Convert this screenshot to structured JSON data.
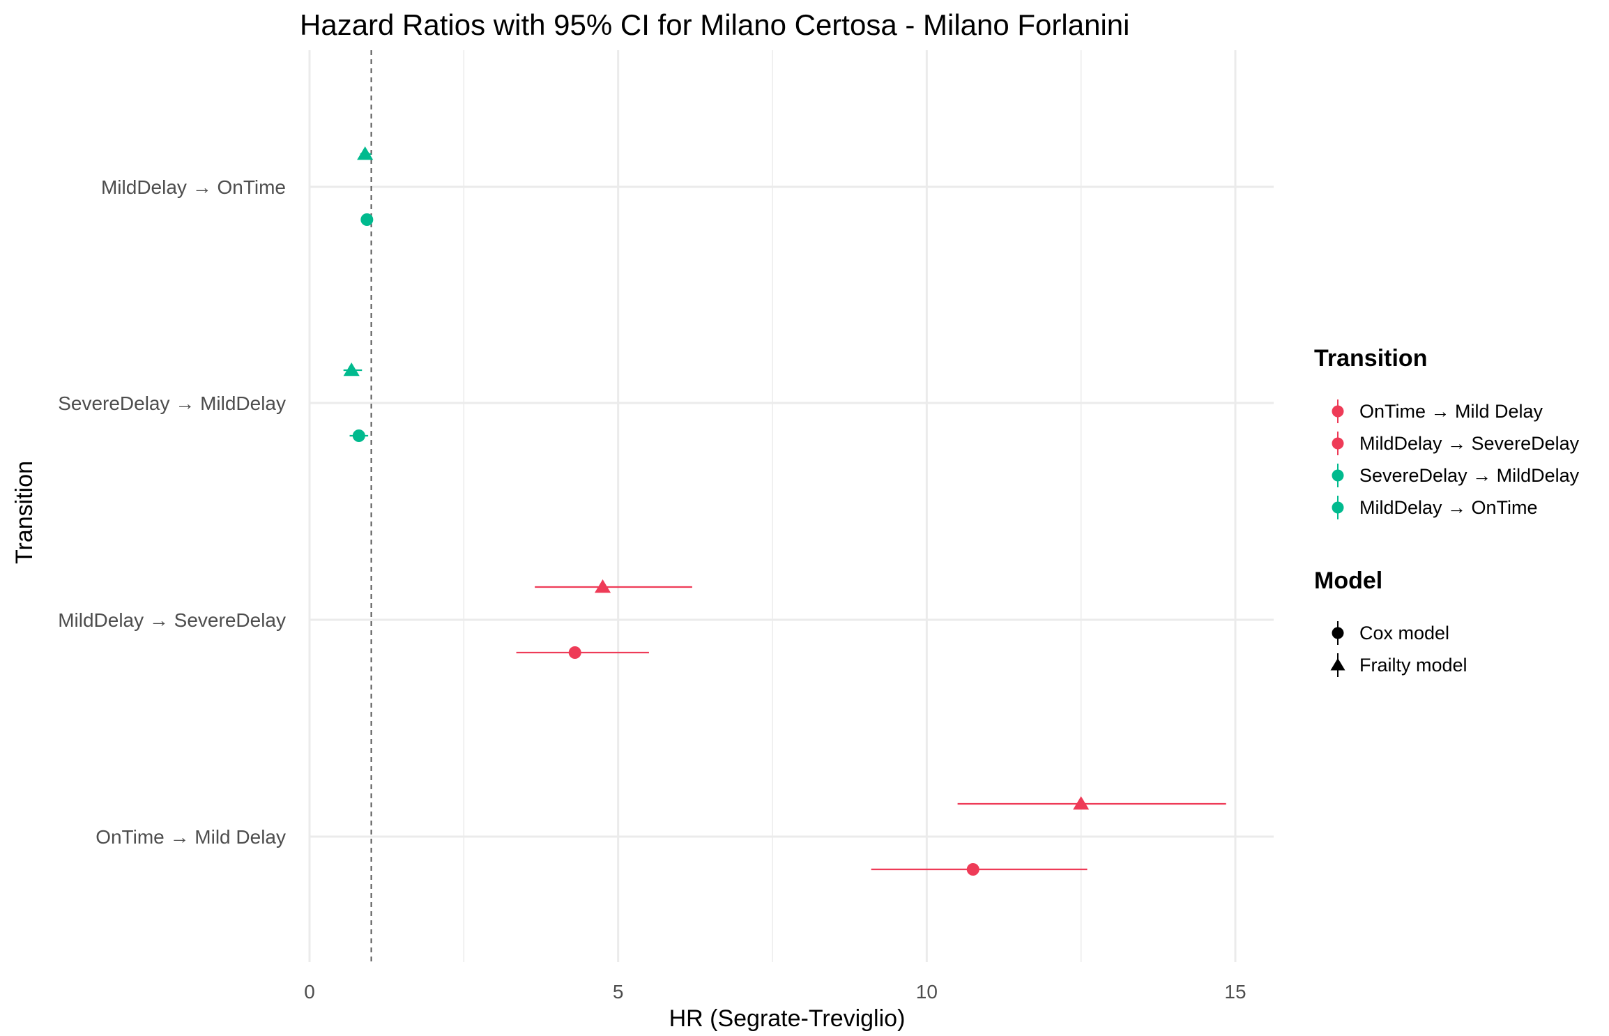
{
  "chart_data": {
    "type": "forest",
    "title": "Hazard Ratios with 95% CI for Milano Certosa - Milano Forlanini",
    "xlabel": "HR (Segrate-Treviglio)",
    "ylabel": "Transition",
    "xlim": [
      0,
      15.5
    ],
    "xticks": [
      0,
      5,
      10,
      15
    ],
    "reference_line": 1,
    "categories": [
      "OnTime → Mild Delay",
      "MildDelay → SevereDelay",
      "SevereDelay → MildDelay",
      "MildDelay → OnTime"
    ],
    "series": [
      {
        "name": "Cox model",
        "shape": "circle",
        "points": [
          {
            "category": "OnTime → Mild Delay",
            "hr": 10.75,
            "lower": 9.1,
            "upper": 12.6
          },
          {
            "category": "MildDelay → SevereDelay",
            "hr": 4.3,
            "lower": 3.35,
            "upper": 5.5
          },
          {
            "category": "SevereDelay → MildDelay",
            "hr": 0.8,
            "lower": 0.65,
            "upper": 0.95
          },
          {
            "category": "MildDelay → OnTime",
            "hr": 0.93,
            "lower": 0.85,
            "upper": 1.02
          }
        ]
      },
      {
        "name": "Frailty model",
        "shape": "triangle",
        "points": [
          {
            "category": "OnTime → Mild Delay",
            "hr": 12.5,
            "lower": 10.5,
            "upper": 14.85
          },
          {
            "category": "MildDelay → SevereDelay",
            "hr": 4.75,
            "lower": 3.65,
            "upper": 6.2
          },
          {
            "category": "SevereDelay → MildDelay",
            "hr": 0.68,
            "lower": 0.55,
            "upper": 0.85
          },
          {
            "category": "MildDelay → OnTime",
            "hr": 0.9,
            "lower": 0.82,
            "upper": 1.0
          }
        ]
      }
    ],
    "legend": {
      "position": "right",
      "transition_title": "Transition",
      "transition_items": [
        {
          "label": "OnTime → Mild Delay",
          "color": "#EE3B57"
        },
        {
          "label": "MildDelay → SevereDelay",
          "color": "#EE3B57"
        },
        {
          "label": "SevereDelay → MildDelay",
          "color": "#00BA8E"
        },
        {
          "label": "MildDelay → OnTime",
          "color": "#00BA8E"
        }
      ],
      "model_title": "Model",
      "model_items": [
        {
          "label": "Cox model",
          "shape": "circle"
        },
        {
          "label": "Frailty model",
          "shape": "triangle"
        }
      ]
    },
    "colors": {
      "OnTime → Mild Delay": "#EE3B57",
      "MildDelay → SevereDelay": "#EE3B57",
      "SevereDelay → MildDelay": "#00BA8E",
      "MildDelay → OnTime": "#00BA8E"
    },
    "grid": true
  }
}
